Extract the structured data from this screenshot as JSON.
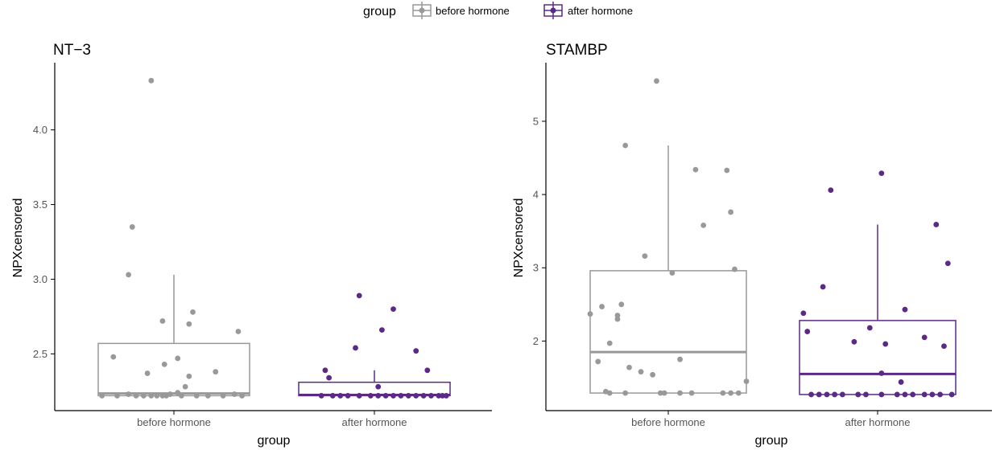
{
  "legend": {
    "title": "group",
    "entries": [
      {
        "label": "before hormone",
        "color": "#999999"
      },
      {
        "label": "after hormone",
        "color": "#5b2a86"
      }
    ],
    "placement": "top-center"
  },
  "chart_data": [
    {
      "type": "box",
      "title": "NT−3",
      "xlabel": "group",
      "ylabel": "NPXcensored",
      "categories": [
        "before hormone",
        "after hormone"
      ],
      "ylim": [
        2.12,
        4.45
      ],
      "yticks": [
        2.5,
        3.0,
        3.5,
        4.0
      ],
      "ytick_labels": [
        "2.5",
        "3.0",
        "3.5",
        "4.0"
      ],
      "grid": false,
      "boxes": [
        {
          "category": "before hormone",
          "color": "#999999",
          "q1": 2.22,
          "median": 2.235,
          "q3": 2.57,
          "whisker_low": 2.22,
          "whisker_high": 3.03
        },
        {
          "category": "after hormone",
          "color": "#5b2a86",
          "q1": 2.22,
          "median": 2.225,
          "q3": 2.31,
          "whisker_low": 2.22,
          "whisker_high": 2.39
        }
      ],
      "points": [
        {
          "category": "before hormone",
          "jitter": [
            -0.38,
            -0.3,
            -0.24,
            -0.2,
            -0.16,
            -0.12,
            -0.09,
            -0.06,
            -0.04,
            -0.02,
            0.02,
            0.04,
            0.12,
            0.18,
            0.26,
            0.32,
            0.36,
            -0.32,
            -0.14,
            -0.22,
            0.02,
            0.08,
            0.06,
            0.22,
            0.34,
            -0.05,
            -0.24,
            -0.06,
            0.08,
            -0.12,
            0.1
          ],
          "values": [
            2.22,
            2.22,
            2.23,
            2.22,
            2.22,
            2.22,
            2.22,
            2.22,
            2.22,
            2.23,
            2.24,
            2.22,
            2.22,
            2.22,
            2.22,
            2.23,
            2.22,
            2.48,
            2.37,
            3.35,
            2.47,
            2.35,
            2.28,
            2.38,
            2.65,
            2.43,
            3.03,
            2.72,
            2.7,
            4.33,
            2.78
          ]
        },
        {
          "category": "after hormone",
          "jitter": [
            -0.28,
            -0.22,
            -0.18,
            -0.14,
            -0.08,
            -0.02,
            0.02,
            0.06,
            0.1,
            0.14,
            0.18,
            0.22,
            0.26,
            0.3,
            0.34,
            0.36,
            0.38,
            -0.1,
            0.04,
            0.1,
            0.22,
            0.28,
            -0.08,
            -0.26,
            -0.24,
            0.02
          ],
          "values": [
            2.22,
            2.22,
            2.22,
            2.22,
            2.22,
            2.22,
            2.22,
            2.22,
            2.22,
            2.22,
            2.22,
            2.22,
            2.22,
            2.22,
            2.22,
            2.22,
            2.22,
            2.54,
            2.66,
            2.8,
            2.52,
            2.39,
            2.89,
            2.39,
            2.34,
            2.28
          ]
        }
      ]
    },
    {
      "type": "box",
      "title": "STAMBP",
      "xlabel": "group",
      "ylabel": "NPXcensored",
      "categories": [
        "before hormone",
        "after hormone"
      ],
      "ylim": [
        1.05,
        5.8
      ],
      "yticks": [
        2,
        3,
        4,
        5
      ],
      "ytick_labels": [
        "2",
        "3",
        "4",
        "5"
      ],
      "grid": false,
      "boxes": [
        {
          "category": "before hormone",
          "color": "#999999",
          "q1": 1.29,
          "median": 1.85,
          "q3": 2.96,
          "whisker_low": 1.29,
          "whisker_high": 4.67
        },
        {
          "category": "after hormone",
          "color": "#5b2a86",
          "q1": 1.27,
          "median": 1.55,
          "q3": 2.28,
          "whisker_low": 1.27,
          "whisker_high": 3.59
        }
      ],
      "points": [
        {
          "category": "before hormone",
          "jitter": [
            -0.4,
            -0.34,
            -0.3,
            -0.32,
            -0.3,
            -0.26,
            -0.26,
            -0.24,
            -0.22,
            -0.2,
            -0.14,
            -0.08,
            -0.04,
            -0.02,
            0.06,
            0.12,
            0.18,
            0.3,
            0.32,
            0.36,
            0.4,
            -0.36,
            -0.22,
            -0.12,
            0.02,
            0.14,
            0.28,
            0.32,
            -0.06,
            0.06,
            0.34
          ],
          "values": [
            2.37,
            2.47,
            1.29,
            1.31,
            1.97,
            2.3,
            2.35,
            2.5,
            1.29,
            1.64,
            1.58,
            1.54,
            1.29,
            1.29,
            1.75,
            1.29,
            3.58,
            4.33,
            3.76,
            1.29,
            1.45,
            1.72,
            4.67,
            3.16,
            2.93,
            4.34,
            1.29,
            1.29,
            5.55,
            1.29,
            2.98
          ]
        },
        {
          "category": "after hormone",
          "jitter": [
            -0.38,
            -0.34,
            -0.3,
            -0.26,
            -0.22,
            -0.18,
            -0.1,
            -0.06,
            0.02,
            0.1,
            0.14,
            0.18,
            0.24,
            0.28,
            0.32,
            0.38,
            -0.36,
            -0.28,
            -0.12,
            -0.04,
            0.04,
            0.12,
            0.14,
            0.24,
            0.34,
            0.36,
            -0.24,
            0.02,
            0.02,
            0.3
          ],
          "values": [
            2.38,
            1.27,
            1.27,
            1.27,
            1.27,
            1.27,
            1.27,
            1.27,
            1.27,
            1.27,
            1.27,
            1.27,
            1.27,
            1.27,
            1.27,
            1.27,
            2.13,
            2.74,
            1.99,
            2.18,
            1.96,
            1.44,
            2.43,
            2.05,
            1.93,
            3.06,
            4.06,
            1.56,
            4.29,
            3.59
          ]
        }
      ]
    }
  ]
}
